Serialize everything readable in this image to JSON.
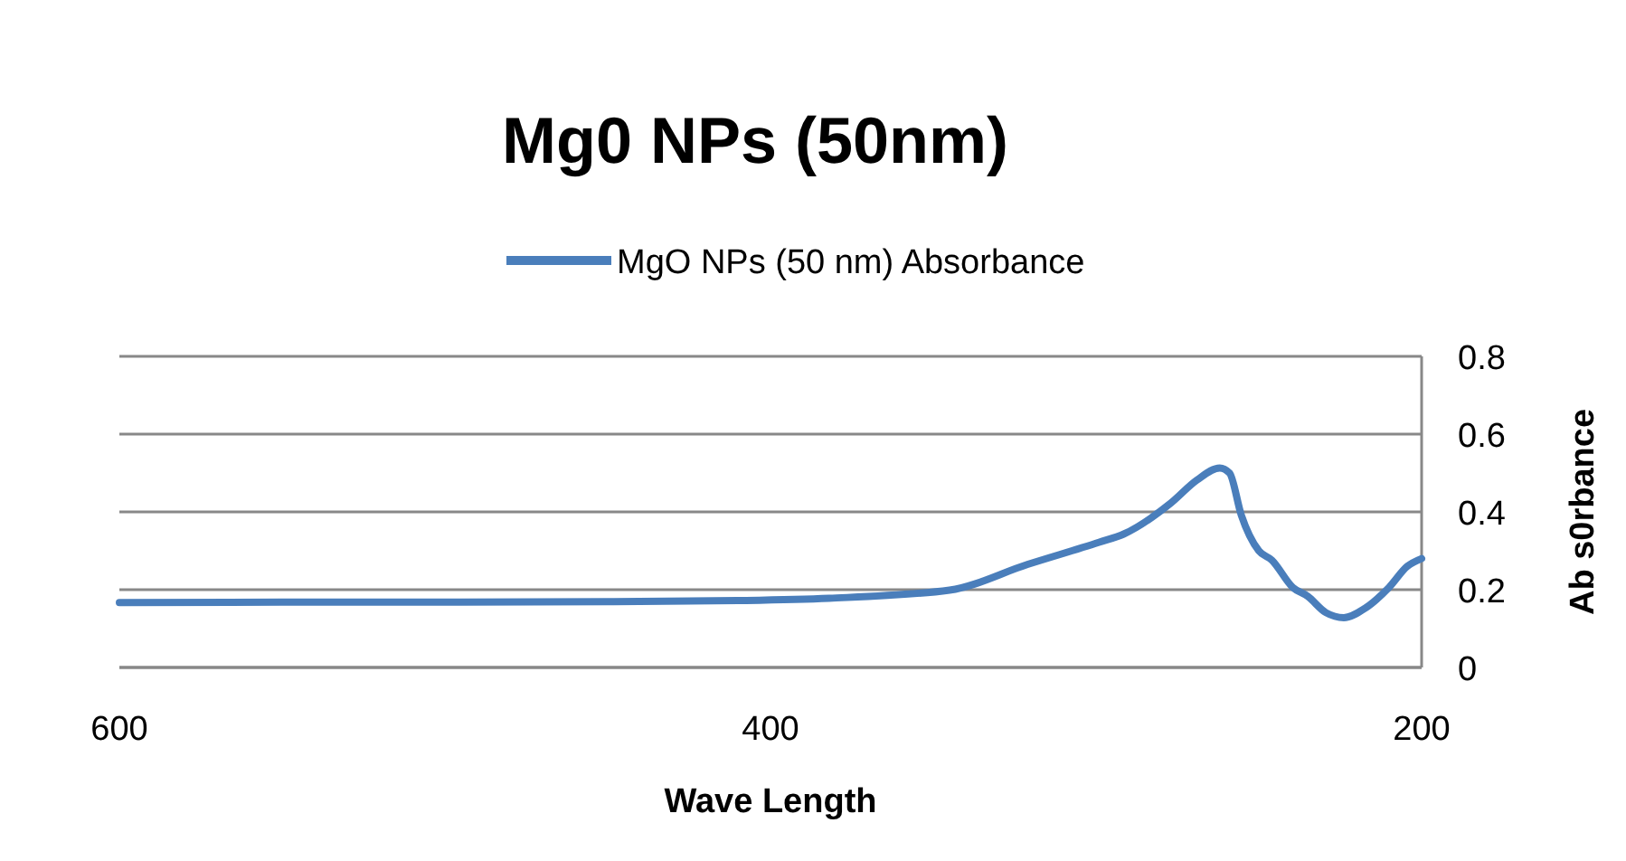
{
  "chart_data": {
    "type": "line",
    "title": "Mg0 NPs (50nm)",
    "xlabel": "Wave Length",
    "ylabel": "Ab s0rbance",
    "xlim": [
      600,
      200
    ],
    "xticks": [
      600,
      400,
      200
    ],
    "ylim": [
      0,
      0.8
    ],
    "yticks": [
      0,
      0.2,
      0.4,
      0.6,
      0.8
    ],
    "grid": "y",
    "legend": "top",
    "marker": "none",
    "line_style": "solid",
    "series": [
      {
        "name": "MgO NPs (50 nm) Absorbance",
        "color": "#4a7ebb",
        "x": [
          600,
          550,
          500,
          450,
          410,
          382,
          345,
          321,
          299,
          291.5,
          277,
          269,
          262,
          259,
          255.4,
          250,
          246,
          239.6,
          235,
          229.4,
          223.9,
          217.4,
          210,
          204.4,
          200
        ],
        "values": [
          0.167,
          0.168,
          0.168,
          0.169,
          0.172,
          0.178,
          0.199,
          0.265,
          0.322,
          0.343,
          0.423,
          0.482,
          0.513,
          0.5,
          0.392,
          0.3,
          0.276,
          0.206,
          0.183,
          0.141,
          0.128,
          0.152,
          0.206,
          0.26,
          0.28
        ]
      }
    ]
  }
}
